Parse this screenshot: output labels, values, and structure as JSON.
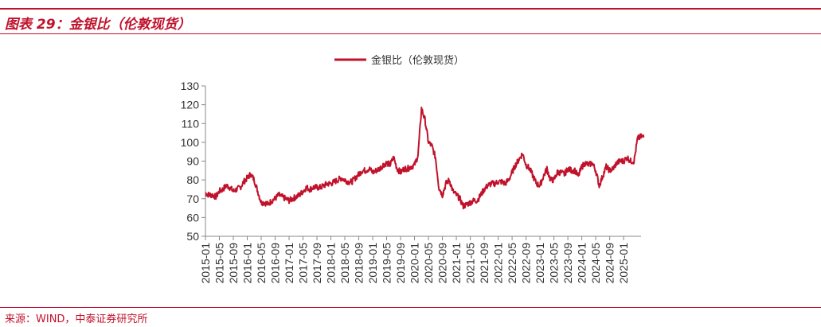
{
  "header": {
    "title": "图表 29：金银比（伦敦现货）"
  },
  "footer": {
    "source": "来源：WIND，中泰证券研究所"
  },
  "colors": {
    "accent": "#c0122b",
    "series": "#c0122b",
    "axis": "#888888"
  },
  "chart_data": {
    "type": "line",
    "title": "",
    "xlabel": "",
    "ylabel": "",
    "ylim": [
      50,
      130
    ],
    "yticks": [
      50,
      60,
      70,
      80,
      90,
      100,
      110,
      120,
      130
    ],
    "xlim": [
      "2015-01",
      "2025-06"
    ],
    "xticks": [
      "2015-01",
      "2015-05",
      "2015-09",
      "2016-01",
      "2016-05",
      "2016-09",
      "2017-01",
      "2017-05",
      "2017-09",
      "2018-01",
      "2018-05",
      "2018-09",
      "2019-01",
      "2019-05",
      "2019-09",
      "2020-01",
      "2020-05",
      "2020-09",
      "2021-01",
      "2021-05",
      "2021-09",
      "2022-01",
      "2022-05",
      "2022-09",
      "2023-01",
      "2023-05",
      "2023-09",
      "2024-01",
      "2024-05",
      "2024-09",
      "2025-01"
    ],
    "grid": false,
    "legend_position": "top-center",
    "series": [
      {
        "name": "金银比（伦敦现货）",
        "x": [
          "2015-01",
          "2015-02",
          "2015-03",
          "2015-04",
          "2015-05",
          "2015-06",
          "2015-07",
          "2015-08",
          "2015-09",
          "2015-10",
          "2015-11",
          "2015-12",
          "2016-01",
          "2016-02",
          "2016-03",
          "2016-04",
          "2016-05",
          "2016-06",
          "2016-07",
          "2016-08",
          "2016-09",
          "2016-10",
          "2016-11",
          "2016-12",
          "2017-01",
          "2017-02",
          "2017-03",
          "2017-04",
          "2017-05",
          "2017-06",
          "2017-07",
          "2017-08",
          "2017-09",
          "2017-10",
          "2017-11",
          "2017-12",
          "2018-01",
          "2018-02",
          "2018-03",
          "2018-04",
          "2018-05",
          "2018-06",
          "2018-07",
          "2018-08",
          "2018-09",
          "2018-10",
          "2018-11",
          "2018-12",
          "2019-01",
          "2019-02",
          "2019-03",
          "2019-04",
          "2019-05",
          "2019-06",
          "2019-07",
          "2019-08",
          "2019-09",
          "2019-10",
          "2019-11",
          "2019-12",
          "2020-01",
          "2020-02",
          "2020-03",
          "2020-04",
          "2020-05",
          "2020-06",
          "2020-07",
          "2020-08",
          "2020-09",
          "2020-10",
          "2020-11",
          "2020-12",
          "2021-01",
          "2021-02",
          "2021-03",
          "2021-04",
          "2021-05",
          "2021-06",
          "2021-07",
          "2021-08",
          "2021-09",
          "2021-10",
          "2021-11",
          "2021-12",
          "2022-01",
          "2022-02",
          "2022-03",
          "2022-04",
          "2022-05",
          "2022-06",
          "2022-07",
          "2022-08",
          "2022-09",
          "2022-10",
          "2022-11",
          "2022-12",
          "2023-01",
          "2023-02",
          "2023-03",
          "2023-04",
          "2023-05",
          "2023-06",
          "2023-07",
          "2023-08",
          "2023-09",
          "2023-10",
          "2023-11",
          "2023-12",
          "2024-01",
          "2024-02",
          "2024-03",
          "2024-04",
          "2024-05",
          "2024-06",
          "2024-07",
          "2024-08",
          "2024-09",
          "2024-10",
          "2024-11",
          "2024-12",
          "2025-01",
          "2025-02",
          "2025-03",
          "2025-04",
          "2025-05",
          "2025-06"
        ],
        "values": [
          73,
          72,
          72,
          71,
          74,
          75,
          77,
          76,
          74,
          75,
          76,
          79,
          81,
          83,
          80,
          74,
          68,
          68,
          67,
          69,
          70,
          72,
          71,
          70,
          69,
          70,
          71,
          72,
          74,
          76,
          75,
          76,
          76,
          76,
          77,
          78,
          78,
          79,
          80,
          81,
          80,
          79,
          79,
          81,
          83,
          85,
          85,
          86,
          84,
          85,
          86,
          88,
          89,
          88,
          92,
          86,
          84,
          86,
          86,
          87,
          88,
          93,
          118,
          112,
          100,
          98,
          92,
          76,
          72,
          78,
          80,
          74,
          72,
          70,
          66,
          67,
          68,
          69,
          69,
          72,
          75,
          77,
          78,
          78,
          79,
          79,
          78,
          80,
          84,
          88,
          91,
          94,
          88,
          86,
          82,
          78,
          77,
          82,
          86,
          80,
          80,
          84,
          84,
          83,
          86,
          85,
          85,
          82,
          87,
          89,
          88,
          89,
          85,
          77,
          82,
          87,
          85,
          86,
          89,
          90,
          90,
          92,
          90,
          90,
          102,
          103
        ]
      }
    ]
  }
}
